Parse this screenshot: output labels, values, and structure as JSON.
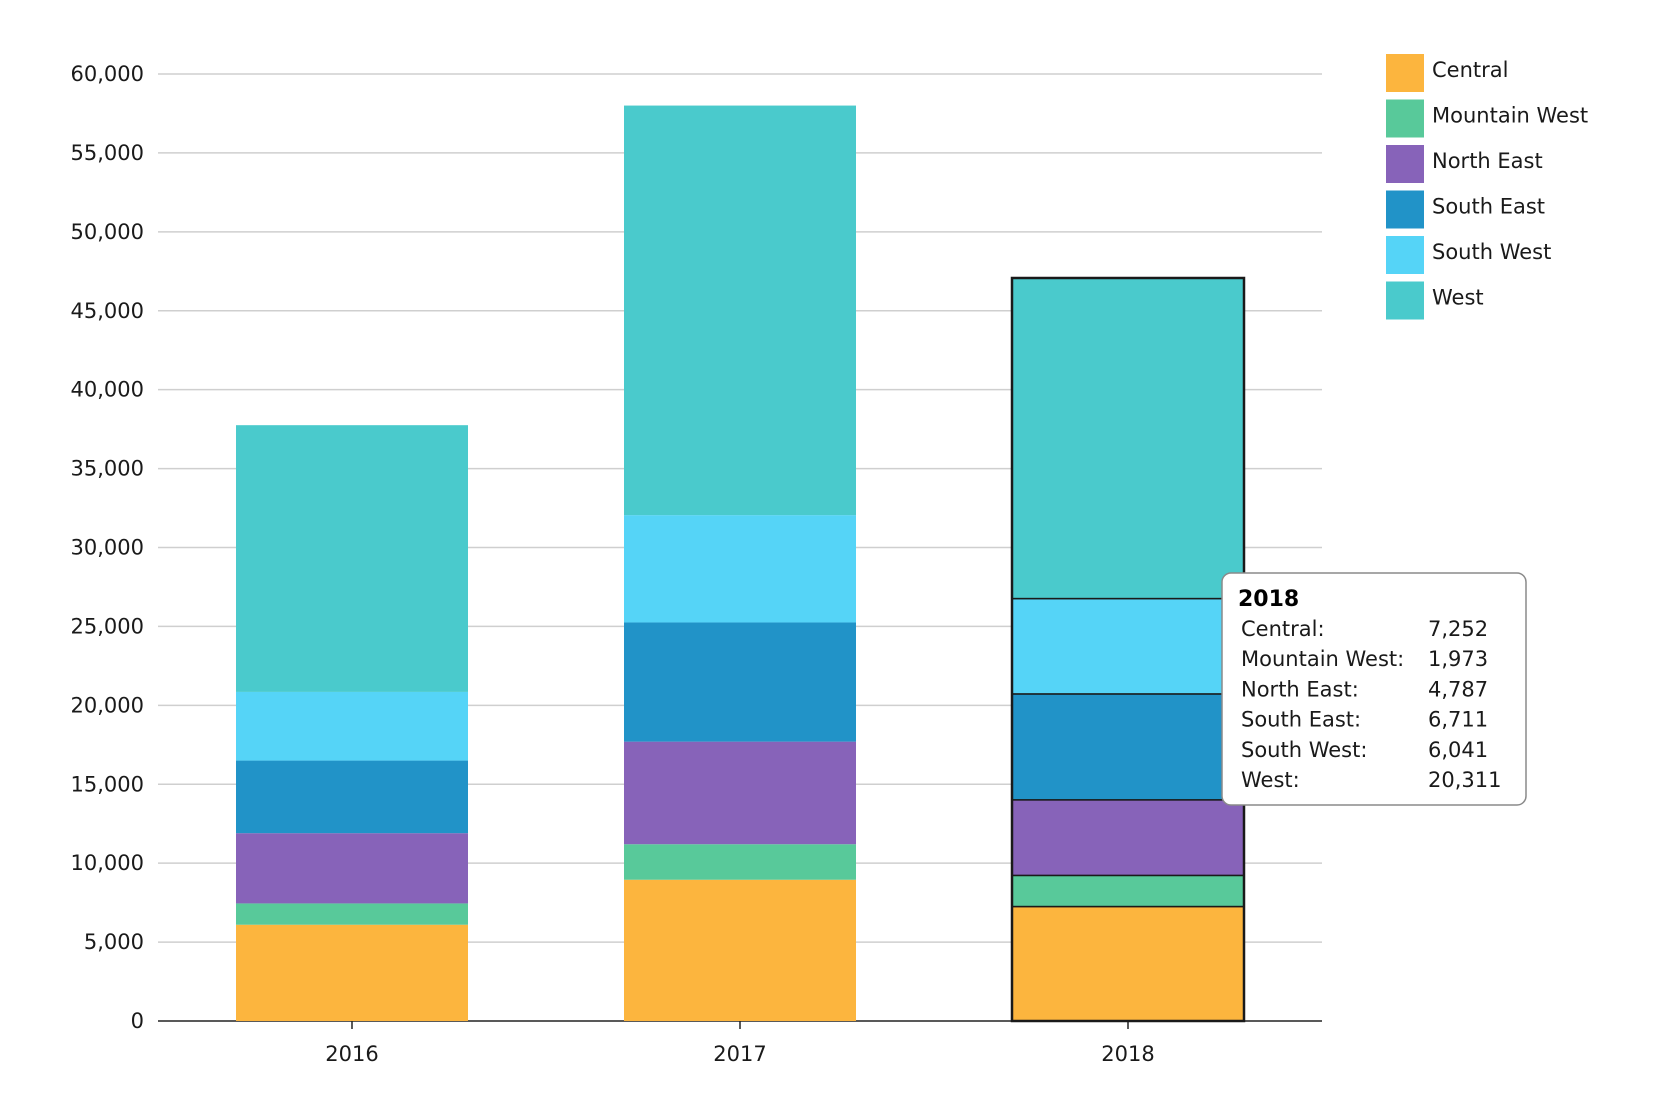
{
  "chart_data": {
    "type": "bar",
    "stacked": true,
    "categories": [
      "2016",
      "2017",
      "2018"
    ],
    "series": [
      {
        "name": "Central",
        "color": "#FCB53E",
        "values": [
          6100,
          8950,
          7252
        ]
      },
      {
        "name": "Mountain West",
        "color": "#58C99A",
        "values": [
          1350,
          2250,
          1973
        ]
      },
      {
        "name": "North East",
        "color": "#8763B9",
        "values": [
          4450,
          6500,
          4787
        ]
      },
      {
        "name": "South East",
        "color": "#2193C8",
        "values": [
          4600,
          7550,
          6711
        ]
      },
      {
        "name": "South West",
        "color": "#55D4F7",
        "values": [
          4350,
          6800,
          6041
        ]
      },
      {
        "name": "West",
        "color": "#4ACACC",
        "values": [
          16900,
          25950,
          20311
        ]
      }
    ],
    "ylim": [
      0,
      60000
    ],
    "yticks": [
      0,
      5000,
      10000,
      15000,
      20000,
      25000,
      30000,
      35000,
      40000,
      45000,
      50000,
      55000,
      60000
    ],
    "ytick_labels": [
      "0",
      "5,000",
      "10,000",
      "15,000",
      "20,000",
      "25,000",
      "30,000",
      "35,000",
      "40,000",
      "45,000",
      "50,000",
      "55,000",
      "60,000"
    ],
    "grid": true,
    "legend": "top-right",
    "highlighted_category": "2018",
    "tooltip": {
      "title": "2018",
      "rows": [
        {
          "label": "Central:",
          "value": "7,252"
        },
        {
          "label": "Mountain West:",
          "value": "1,973"
        },
        {
          "label": "North East:",
          "value": "4,787"
        },
        {
          "label": "South East:",
          "value": "6,711"
        },
        {
          "label": "South West:",
          "value": "6,041"
        },
        {
          "label": "West:",
          "value": "20,311"
        }
      ]
    }
  }
}
